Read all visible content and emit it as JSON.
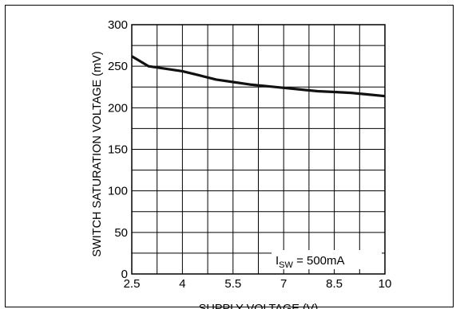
{
  "chart_data": {
    "type": "line",
    "xlabel": "SUPPLY VOLTAGE (V)",
    "ylabel": "SWITCH SATURATION VOLTAGE (mV)",
    "xlim": [
      2.5,
      10
    ],
    "ylim": [
      0,
      300
    ],
    "x_ticks": [
      2.5,
      4,
      5.5,
      7,
      8.5,
      10
    ],
    "x_tick_labels": [
      "2.5",
      "4",
      "5.5",
      "7",
      "8.5",
      "10"
    ],
    "y_ticks": [
      0,
      50,
      100,
      150,
      200,
      250,
      300
    ],
    "y_tick_labels": [
      "0",
      "50",
      "100",
      "150",
      "200",
      "250",
      "300"
    ],
    "grid": true,
    "annotation": {
      "symbol": "I",
      "subscript": "SW",
      "text": " = 500mA"
    },
    "series": [
      {
        "x": [
          2.5,
          3.0,
          3.5,
          4.0,
          4.5,
          5.0,
          5.5,
          6.0,
          6.5,
          7.0,
          7.5,
          8.0,
          8.5,
          9.0,
          9.5,
          10.0
        ],
        "y": [
          262,
          250,
          247,
          244,
          239,
          234,
          231,
          228,
          226,
          224,
          222,
          220,
          219,
          218,
          216,
          214
        ]
      }
    ]
  }
}
